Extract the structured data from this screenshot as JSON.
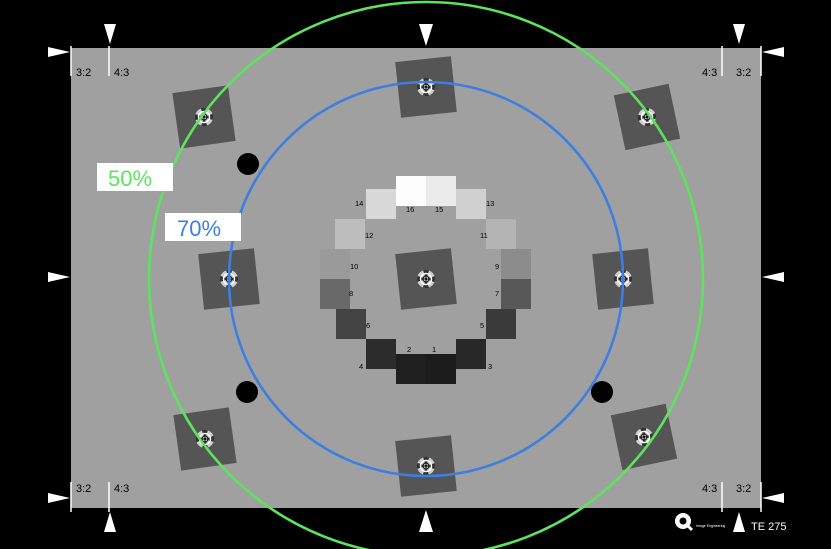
{
  "chart": {
    "model": "TE 275",
    "brand": "Image Engineering",
    "circle_labels": [
      {
        "text": "50%",
        "color": "#5ee35e"
      },
      {
        "text": "70%",
        "color": "#3d7fe0"
      }
    ],
    "aspect_labels": {
      "a": "3:2",
      "b": "4:3"
    },
    "colors": {
      "background": "#000000",
      "chart_gray": "#a0a0a0",
      "green_ring": "#5ee35e",
      "blue_ring": "#3d7fe0",
      "star_patch": "#555555"
    },
    "gray_patches": [
      {
        "label": "1",
        "shade": "#1b1b1b"
      },
      {
        "label": "2",
        "shade": "#1f1f1f"
      },
      {
        "label": "3",
        "shade": "#282828"
      },
      {
        "label": "4",
        "shade": "#2c2c2c"
      },
      {
        "label": "5",
        "shade": "#3a3a3a"
      },
      {
        "label": "6",
        "shade": "#434343"
      },
      {
        "label": "7",
        "shade": "#585858"
      },
      {
        "label": "8",
        "shade": "#696969"
      },
      {
        "label": "9",
        "shade": "#8c8c8c"
      },
      {
        "label": "10",
        "shade": "#9a9a9a"
      },
      {
        "label": "11",
        "shade": "#b4b4b4"
      },
      {
        "label": "12",
        "shade": "#bdbdbd"
      },
      {
        "label": "13",
        "shade": "#d0d0d0"
      },
      {
        "label": "14",
        "shade": "#d8d8d8"
      },
      {
        "label": "15",
        "shade": "#ebebeb"
      },
      {
        "label": "16",
        "shade": "#fdfdfd"
      }
    ]
  }
}
